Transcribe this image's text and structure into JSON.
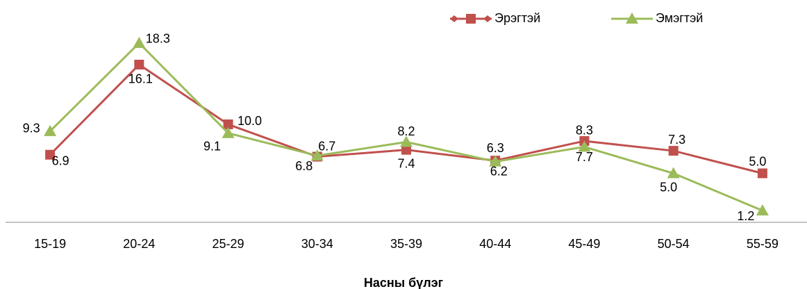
{
  "chart_data": {
    "type": "line",
    "x_label": "Насны бүлэг",
    "categories": [
      "15-19",
      "20-24",
      "25-29",
      "30-34",
      "35-39",
      "40-44",
      "45-49",
      "50-54",
      "55-59"
    ],
    "series": [
      {
        "name": "Эрэгтэй",
        "color": "#c0504d",
        "marker": "square",
        "values": [
          6.9,
          16.1,
          10.0,
          6.7,
          7.4,
          6.3,
          8.3,
          7.3,
          5.0
        ],
        "value_labels": [
          "6.9",
          "16.1",
          "10.0",
          "6.7",
          "7.4",
          "6.3",
          "8.3",
          "7.3",
          "5.0"
        ]
      },
      {
        "name": "Эмэгтэй",
        "color": "#9bbb59",
        "marker": "triangle",
        "values": [
          9.3,
          18.3,
          9.1,
          6.8,
          8.2,
          6.2,
          7.7,
          5.0,
          1.2
        ],
        "value_labels": [
          "9.3",
          "18.3",
          "9.1",
          "6.8",
          "8.2",
          "6.2",
          "7.7",
          "5.0",
          "1.2"
        ]
      }
    ],
    "ylim": [
      0,
      20
    ],
    "legend": "top-right"
  }
}
